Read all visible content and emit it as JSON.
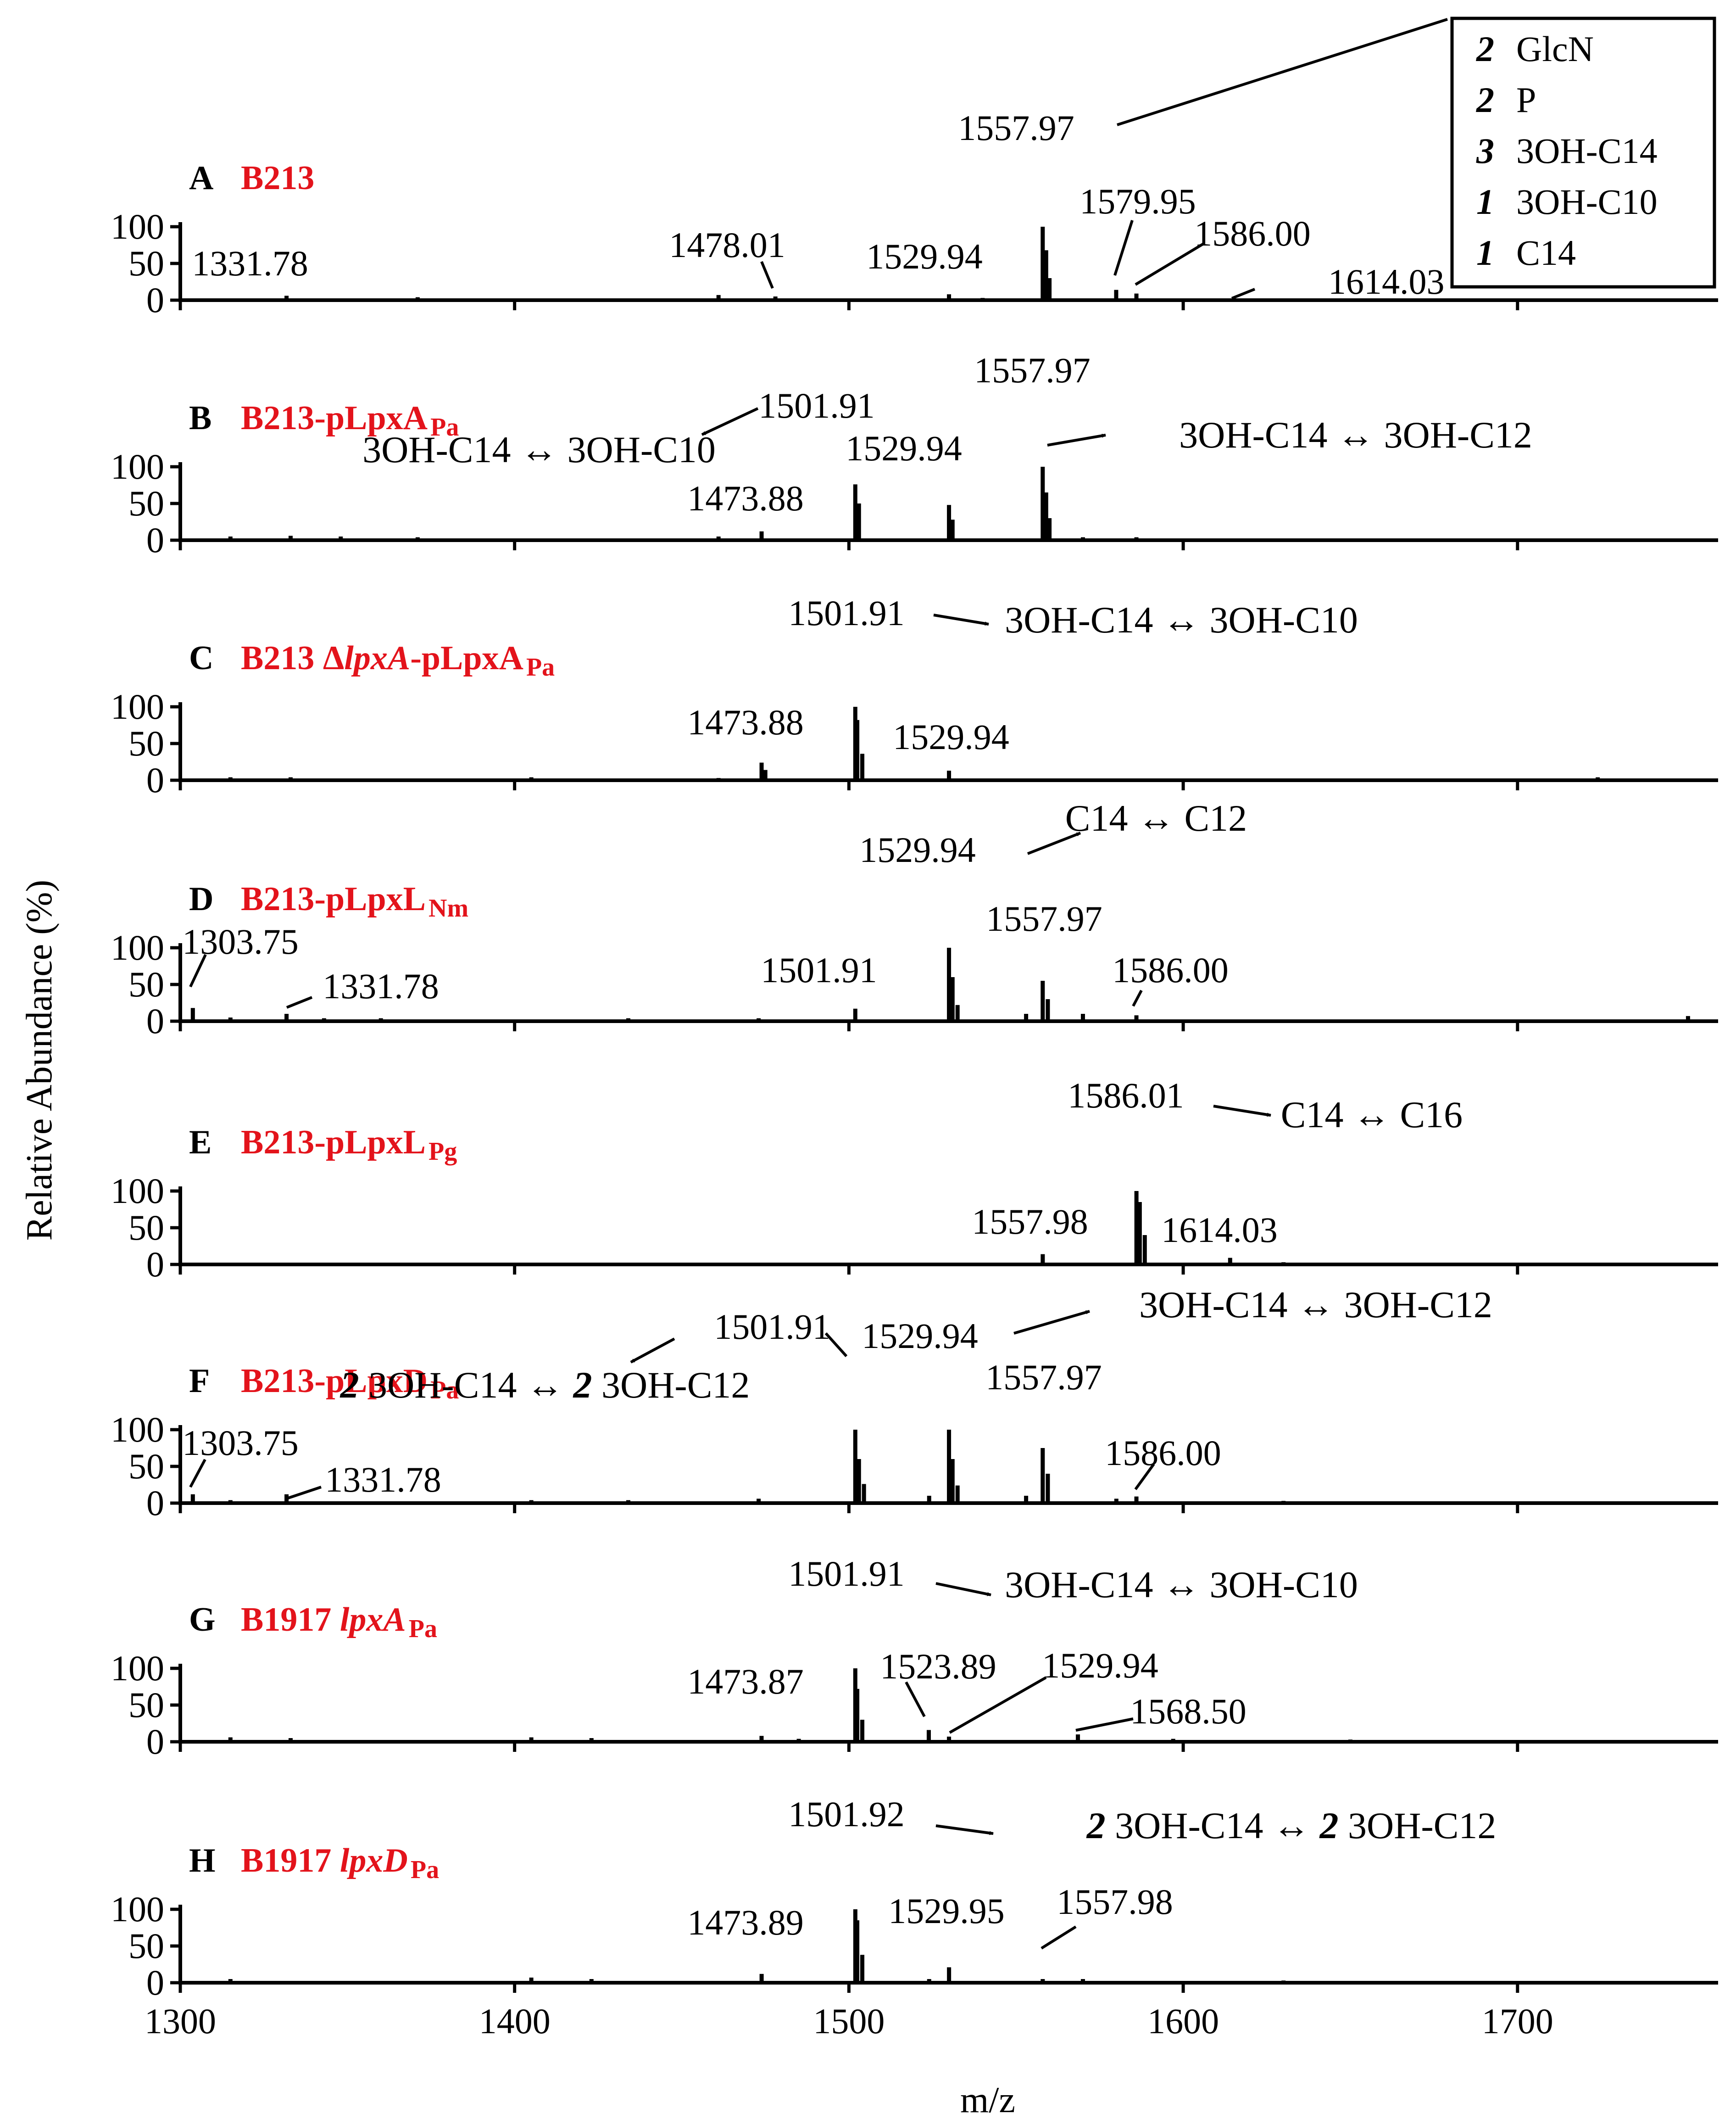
{
  "x_axis": {
    "label": "m/z",
    "range": [
      1300,
      1760
    ],
    "ticks": [
      1300,
      1400,
      1500,
      1600,
      1700
    ]
  },
  "y_axis": {
    "label": "Relative Abundance (%)",
    "range": [
      0,
      100
    ],
    "ticks": [
      0,
      50,
      100
    ]
  },
  "legend": {
    "placement": "top-right",
    "items": [
      {
        "count": "2",
        "label": "GlcN"
      },
      {
        "count": "2",
        "label": "P"
      },
      {
        "count": "3",
        "label": "3OH-C14"
      },
      {
        "count": "1",
        "label": "3OH-C10"
      },
      {
        "count": "1",
        "label": "C14"
      }
    ]
  },
  "chart_data": {
    "type": "bar",
    "xlabel": "m/z",
    "ylabel": "Relative Abundance (%)",
    "xlim": [
      1300,
      1760
    ],
    "ylim": [
      0,
      100
    ],
    "grid": false,
    "panels": [
      {
        "letter": "A",
        "name": {
          "base": "B213",
          "sub": ""
        },
        "peaks": [
          {
            "mz": 1331.78,
            "rel": 6,
            "label": "1331.78"
          },
          {
            "mz": 1371.0,
            "rel": 4
          },
          {
            "mz": 1461.0,
            "rel": 7
          },
          {
            "mz": 1478.01,
            "rel": 5,
            "label": "1478.01"
          },
          {
            "mz": 1529.94,
            "rel": 8,
            "label": "1529.94"
          },
          {
            "mz": 1540.0,
            "rel": 3
          },
          {
            "mz": 1557.97,
            "rel": 100,
            "label": "1557.97"
          },
          {
            "mz": 1559.0,
            "rel": 68
          },
          {
            "mz": 1560.0,
            "rel": 30
          },
          {
            "mz": 1579.95,
            "rel": 14,
            "label": "1579.95"
          },
          {
            "mz": 1586.0,
            "rel": 9,
            "label": "1586.00"
          },
          {
            "mz": 1614.03,
            "rel": 2,
            "label": "1614.03"
          }
        ],
        "annotations": []
      },
      {
        "letter": "B",
        "name": {
          "base": "B213-pLpxA",
          "sub": "Pa"
        },
        "peaks": [
          {
            "mz": 1315.0,
            "rel": 5
          },
          {
            "mz": 1333.0,
            "rel": 6
          },
          {
            "mz": 1348.0,
            "rel": 5
          },
          {
            "mz": 1371.0,
            "rel": 4
          },
          {
            "mz": 1461.0,
            "rel": 5
          },
          {
            "mz": 1473.88,
            "rel": 12,
            "label": "1473.88"
          },
          {
            "mz": 1501.91,
            "rel": 76,
            "label": "1501.91"
          },
          {
            "mz": 1503.0,
            "rel": 50
          },
          {
            "mz": 1529.94,
            "rel": 48,
            "label": "1529.94"
          },
          {
            "mz": 1531.0,
            "rel": 28
          },
          {
            "mz": 1557.97,
            "rel": 100,
            "label": "1557.97"
          },
          {
            "mz": 1559.0,
            "rel": 65
          },
          {
            "mz": 1560.0,
            "rel": 30
          },
          {
            "mz": 1570.0,
            "rel": 4
          },
          {
            "mz": 1586.0,
            "rel": 4
          }
        ],
        "annotations": [
          {
            "text": "3OH-C14 ↔ 3OH-C10"
          },
          {
            "text": "3OH-C14 ↔ 3OH-C12"
          }
        ]
      },
      {
        "letter": "C",
        "name": {
          "base": "B213 Δ",
          "italic": "lpxA",
          "rest": "-pLpxA",
          "sub": "Pa"
        },
        "peaks": [
          {
            "mz": 1315.0,
            "rel": 4
          },
          {
            "mz": 1333.0,
            "rel": 4
          },
          {
            "mz": 1405.0,
            "rel": 4
          },
          {
            "mz": 1461.0,
            "rel": 3
          },
          {
            "mz": 1473.88,
            "rel": 24,
            "label": "1473.88"
          },
          {
            "mz": 1475.0,
            "rel": 14
          },
          {
            "mz": 1501.91,
            "rel": 100,
            "label": "1501.91"
          },
          {
            "mz": 1502.5,
            "rel": 82
          },
          {
            "mz": 1504.0,
            "rel": 36
          },
          {
            "mz": 1529.94,
            "rel": 13,
            "label": "1529.94"
          },
          {
            "mz": 1724.0,
            "rel": 4
          }
        ],
        "annotations": [
          {
            "text": "3OH-C14 ↔ 3OH-C10"
          }
        ]
      },
      {
        "letter": "D",
        "name": {
          "base": "B213-pLpxL",
          "sub": "Nm"
        },
        "peaks": [
          {
            "mz": 1303.75,
            "rel": 18,
            "label": "1303.75"
          },
          {
            "mz": 1315.0,
            "rel": 5
          },
          {
            "mz": 1331.78,
            "rel": 10,
            "label": "1331.78"
          },
          {
            "mz": 1343.0,
            "rel": 4
          },
          {
            "mz": 1360.0,
            "rel": 4
          },
          {
            "mz": 1434.0,
            "rel": 4
          },
          {
            "mz": 1473.0,
            "rel": 4
          },
          {
            "mz": 1501.91,
            "rel": 17,
            "label": "1501.91"
          },
          {
            "mz": 1529.94,
            "rel": 100,
            "label": "1529.94"
          },
          {
            "mz": 1531.0,
            "rel": 60
          },
          {
            "mz": 1532.5,
            "rel": 22
          },
          {
            "mz": 1553.0,
            "rel": 10
          },
          {
            "mz": 1557.97,
            "rel": 55,
            "label": "1557.97"
          },
          {
            "mz": 1559.5,
            "rel": 30
          },
          {
            "mz": 1570.0,
            "rel": 10
          },
          {
            "mz": 1586.0,
            "rel": 8,
            "label": "1586.00"
          },
          {
            "mz": 1751.0,
            "rel": 7
          }
        ],
        "annotations": [
          {
            "text": "C14 ↔ C12"
          }
        ]
      },
      {
        "letter": "E",
        "name": {
          "base": "B213-pLpxL",
          "sub": "Pg"
        },
        "peaks": [
          {
            "mz": 1557.98,
            "rel": 14,
            "label": "1557.98"
          },
          {
            "mz": 1586.01,
            "rel": 100,
            "label": "1586.01"
          },
          {
            "mz": 1587.0,
            "rel": 85
          },
          {
            "mz": 1588.5,
            "rel": 40
          },
          {
            "mz": 1614.03,
            "rel": 9,
            "label": "1614.03"
          },
          {
            "mz": 1630.0,
            "rel": 3
          }
        ],
        "annotations": [
          {
            "text": "C14 ↔ C16"
          }
        ]
      },
      {
        "letter": "F",
        "name": {
          "base": "B213-pLpxD",
          "sub": "Pa"
        },
        "peaks": [
          {
            "mz": 1303.75,
            "rel": 12,
            "label": "1303.75"
          },
          {
            "mz": 1315.0,
            "rel": 4
          },
          {
            "mz": 1331.78,
            "rel": 12,
            "label": "1331.78"
          },
          {
            "mz": 1405.0,
            "rel": 4
          },
          {
            "mz": 1434.0,
            "rel": 4
          },
          {
            "mz": 1473.0,
            "rel": 6
          },
          {
            "mz": 1501.91,
            "rel": 100,
            "label": "1501.91"
          },
          {
            "mz": 1503.0,
            "rel": 60
          },
          {
            "mz": 1504.5,
            "rel": 26
          },
          {
            "mz": 1524.0,
            "rel": 10
          },
          {
            "mz": 1529.94,
            "rel": 100,
            "label": "1529.94"
          },
          {
            "mz": 1531.0,
            "rel": 60
          },
          {
            "mz": 1532.5,
            "rel": 24
          },
          {
            "mz": 1553.0,
            "rel": 10
          },
          {
            "mz": 1557.97,
            "rel": 75,
            "label": "1557.97"
          },
          {
            "mz": 1559.5,
            "rel": 40
          },
          {
            "mz": 1580.0,
            "rel": 6
          },
          {
            "mz": 1586.0,
            "rel": 9,
            "label": "1586.00"
          },
          {
            "mz": 1630.0,
            "rel": 3
          }
        ],
        "annotations": [
          {
            "text": "3OH-C14 ↔ 3OH-C12"
          },
          {
            "text": "2 3OH-C14 ↔ 2 3OH-C12"
          }
        ]
      },
      {
        "letter": "G",
        "name": {
          "base": "B1917 ",
          "italic": "lpxA",
          "sub": "Pa"
        },
        "peaks": [
          {
            "mz": 1315.0,
            "rel": 6
          },
          {
            "mz": 1333.0,
            "rel": 5
          },
          {
            "mz": 1405.0,
            "rel": 6
          },
          {
            "mz": 1423.0,
            "rel": 5
          },
          {
            "mz": 1473.87,
            "rel": 8,
            "label": "1473.87"
          },
          {
            "mz": 1485.0,
            "rel": 4
          },
          {
            "mz": 1501.91,
            "rel": 100,
            "label": "1501.91"
          },
          {
            "mz": 1502.5,
            "rel": 72
          },
          {
            "mz": 1504.0,
            "rel": 30
          },
          {
            "mz": 1523.89,
            "rel": 16,
            "label": "1523.89"
          },
          {
            "mz": 1529.94,
            "rel": 7,
            "label": "1529.94"
          },
          {
            "mz": 1568.5,
            "rel": 10,
            "label": "1568.50"
          },
          {
            "mz": 1597.0,
            "rel": 4
          },
          {
            "mz": 1650.0,
            "rel": 3
          }
        ],
        "annotations": [
          {
            "text": "3OH-C14 ↔ 3OH-C10"
          }
        ]
      },
      {
        "letter": "H",
        "name": {
          "base": "B1917 ",
          "italic": "lpxD",
          "sub": "Pa"
        },
        "peaks": [
          {
            "mz": 1315.0,
            "rel": 5
          },
          {
            "mz": 1405.0,
            "rel": 7
          },
          {
            "mz": 1423.0,
            "rel": 5
          },
          {
            "mz": 1473.89,
            "rel": 12,
            "label": "1473.89"
          },
          {
            "mz": 1501.92,
            "rel": 100,
            "label": "1501.92"
          },
          {
            "mz": 1502.5,
            "rel": 85
          },
          {
            "mz": 1504.0,
            "rel": 38
          },
          {
            "mz": 1524.0,
            "rel": 5
          },
          {
            "mz": 1529.95,
            "rel": 21,
            "label": "1529.95"
          },
          {
            "mz": 1557.98,
            "rel": 5,
            "label": "1557.98"
          },
          {
            "mz": 1570.0,
            "rel": 5
          },
          {
            "mz": 1630.0,
            "rel": 3
          }
        ],
        "annotations": [
          {
            "text": "2 3OH-C14 ↔ 2 3OH-C12"
          }
        ]
      }
    ]
  }
}
